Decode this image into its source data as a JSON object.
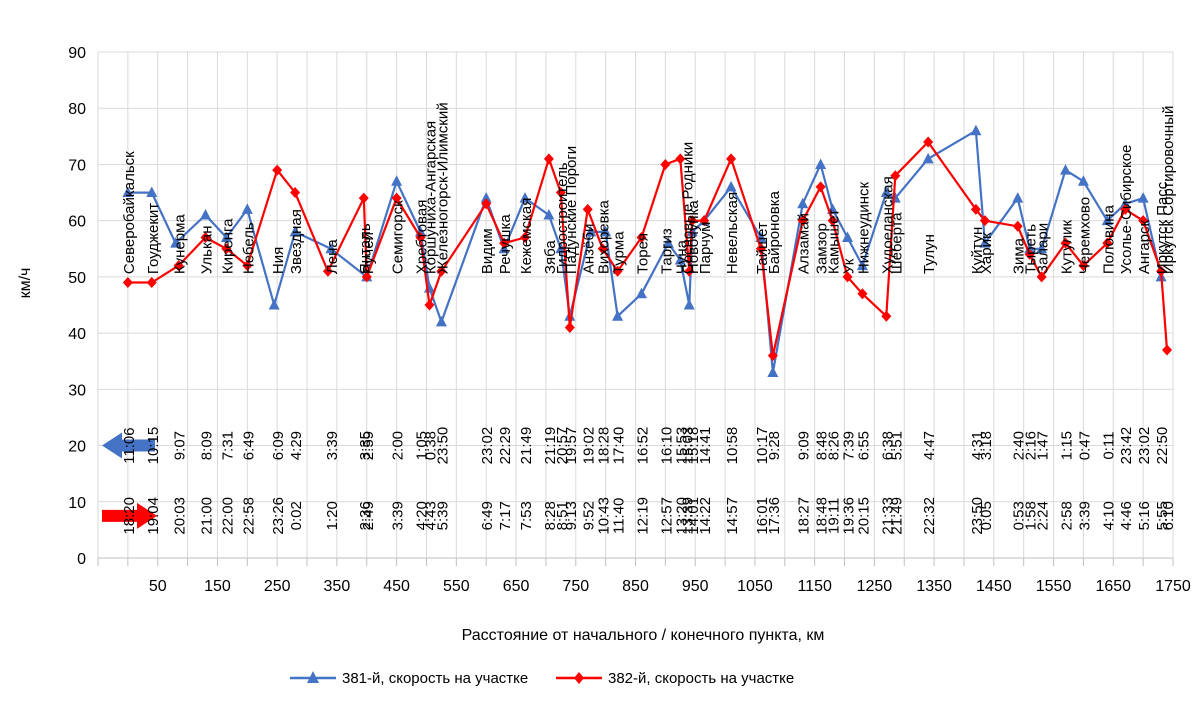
{
  "chart_data": {
    "type": "line",
    "title": "",
    "xlabel": "Расстояние от начального / конечного пункта, км",
    "ylabel": "км/ч",
    "xlim": [
      -50,
      1750
    ],
    "ylim": [
      0,
      90
    ],
    "x_ticks": [
      50,
      150,
      250,
      350,
      450,
      550,
      650,
      750,
      850,
      950,
      1050,
      1150,
      1250,
      1350,
      1450,
      1550,
      1650,
      1750
    ],
    "y_ticks": [
      0,
      10,
      20,
      30,
      40,
      50,
      60,
      70,
      80,
      90
    ],
    "colors": {
      "s381": "#4472C4",
      "s382": "#FF0000",
      "grid": "#D9D9D9"
    },
    "series": [
      {
        "name": "381-й, скорость на участке",
        "marker": "triangle",
        "points": [
          [
            0,
            65
          ],
          [
            40,
            65
          ],
          [
            80,
            56
          ],
          [
            130,
            61
          ],
          [
            165,
            57
          ],
          [
            200,
            62
          ],
          [
            245,
            45
          ],
          [
            280,
            58
          ],
          [
            340,
            55
          ],
          [
            400,
            50
          ],
          [
            450,
            67
          ],
          [
            490,
            58
          ],
          [
            505,
            48
          ],
          [
            525,
            42
          ],
          [
            600,
            64
          ],
          [
            630,
            55
          ],
          [
            665,
            64
          ],
          [
            705,
            61
          ],
          [
            725,
            55
          ],
          [
            740,
            43
          ],
          [
            775,
            58
          ],
          [
            800,
            58
          ],
          [
            820,
            43
          ],
          [
            860,
            47
          ],
          [
            905,
            56
          ],
          [
            925,
            53
          ],
          [
            940,
            45
          ],
          [
            945,
            58
          ],
          [
            965,
            60
          ],
          [
            1010,
            66
          ],
          [
            1060,
            57
          ],
          [
            1080,
            33
          ],
          [
            1130,
            63
          ],
          [
            1160,
            70
          ],
          [
            1180,
            62
          ],
          [
            1205,
            57
          ],
          [
            1230,
            52
          ],
          [
            1270,
            65
          ],
          [
            1285,
            64
          ],
          [
            1340,
            71
          ],
          [
            1420,
            76
          ],
          [
            1435,
            56
          ],
          [
            1490,
            64
          ],
          [
            1510,
            55
          ],
          [
            1530,
            55
          ],
          [
            1570,
            69
          ],
          [
            1600,
            67
          ],
          [
            1640,
            60
          ],
          [
            1670,
            63
          ],
          [
            1700,
            64
          ],
          [
            1730,
            50
          ]
        ]
      },
      {
        "name": "382-й, скорость на участке",
        "marker": "diamond",
        "points": [
          [
            0,
            49
          ],
          [
            40,
            49
          ],
          [
            85,
            52
          ],
          [
            130,
            57
          ],
          [
            165,
            55
          ],
          [
            200,
            52
          ],
          [
            250,
            69
          ],
          [
            280,
            65
          ],
          [
            335,
            51
          ],
          [
            395,
            64
          ],
          [
            400,
            50
          ],
          [
            450,
            64
          ],
          [
            490,
            57
          ],
          [
            505,
            45
          ],
          [
            525,
            51
          ],
          [
            600,
            63
          ],
          [
            630,
            56
          ],
          [
            665,
            57
          ],
          [
            705,
            71
          ],
          [
            725,
            65
          ],
          [
            740,
            41
          ],
          [
            770,
            62
          ],
          [
            795,
            55
          ],
          [
            820,
            51
          ],
          [
            860,
            57
          ],
          [
            900,
            70
          ],
          [
            925,
            71
          ],
          [
            940,
            51
          ],
          [
            945,
            60
          ],
          [
            965,
            60
          ],
          [
            1010,
            71
          ],
          [
            1060,
            55
          ],
          [
            1080,
            36
          ],
          [
            1130,
            60
          ],
          [
            1160,
            66
          ],
          [
            1180,
            60
          ],
          [
            1205,
            50
          ],
          [
            1230,
            47
          ],
          [
            1270,
            43
          ],
          [
            1285,
            68
          ],
          [
            1340,
            74
          ],
          [
            1420,
            62
          ],
          [
            1435,
            60
          ],
          [
            1490,
            59
          ],
          [
            1510,
            54
          ],
          [
            1530,
            50
          ],
          [
            1570,
            56
          ],
          [
            1600,
            52
          ],
          [
            1640,
            56
          ],
          [
            1670,
            62
          ],
          [
            1700,
            60
          ],
          [
            1730,
            51
          ],
          [
            1740,
            37
          ]
        ]
      }
    ],
    "stations": [
      {
        "name": "Северобайкальск",
        "x": 0,
        "t381": "11:06",
        "t382": "18:20"
      },
      {
        "name": "Гоуджекит",
        "x": 40,
        "t381": "10:15",
        "t382": "19:04"
      },
      {
        "name": "Кунерма",
        "x": 85,
        "t381": "9:07",
        "t382": "20:03"
      },
      {
        "name": "Улькан",
        "x": 130,
        "t381": "8:09",
        "t382": "21:00"
      },
      {
        "name": "Киренга",
        "x": 165,
        "t381": "7:31",
        "t382": "22:00"
      },
      {
        "name": "Небель",
        "x": 200,
        "t381": "6:49",
        "t382": "22:58"
      },
      {
        "name": "Ния",
        "x": 250,
        "t381": "6:09",
        "t382": "23:26"
      },
      {
        "name": "Звездная",
        "x": 280,
        "t381": "4:29",
        "t382": "0:02"
      },
      {
        "name": "Лена",
        "x": 340,
        "t381": "3:39",
        "t382": "1:20"
      },
      {
        "name": "Янталь",
        "x": 395,
        "t381": "3:35",
        "t382": "2:36"
      },
      {
        "name": "Ручей",
        "x": 400,
        "t381": "2:59",
        "t382": "2:49"
      },
      {
        "name": "Семигорск",
        "x": 450,
        "t381": "2:00",
        "t382": "3:39"
      },
      {
        "name": "Хребтовая",
        "x": 490,
        "t381": "1:05",
        "t382": "4:20"
      },
      {
        "name": "Коршуниха-Ангарская",
        "x": 505,
        "t381": "0:38",
        "t382": "4:43"
      },
      {
        "name": "Железногорск-Илимский",
        "x": 525,
        "t381": "23:50",
        "t382": "5:39"
      },
      {
        "name": "Видим",
        "x": 600,
        "t381": "23:02",
        "t382": "6:49"
      },
      {
        "name": "Речушка",
        "x": 630,
        "t381": "22:29",
        "t382": "7:17"
      },
      {
        "name": "Кежемская",
        "x": 665,
        "t381": "21:49",
        "t382": "7:53"
      },
      {
        "name": "Зяба",
        "x": 705,
        "t381": "21:19",
        "t382": "8:28"
      },
      {
        "name": "Гидростроитель",
        "x": 725,
        "t381": "20:57",
        "t382": "8:51"
      },
      {
        "name": "Падунские Пороги",
        "x": 740,
        "t381": "19:57",
        "t382": "9:13"
      },
      {
        "name": "Анзёби",
        "x": 770,
        "t381": "19:02",
        "t382": "9:52"
      },
      {
        "name": "Вихоревка",
        "x": 795,
        "t381": "18:28",
        "t382": "10:43"
      },
      {
        "name": "Турма",
        "x": 820,
        "t381": "17:40",
        "t382": "11:40"
      },
      {
        "name": "Торея",
        "x": 860,
        "t381": "16:52",
        "t382": "12:19"
      },
      {
        "name": "Таргиз",
        "x": 900,
        "t381": "16:10",
        "t382": "12:57"
      },
      {
        "name": "Чуна",
        "x": 925,
        "t381": "15:53",
        "t382": "13:20"
      },
      {
        "name": "Сосновые Родники",
        "x": 935,
        "t381": "15:03",
        "t382": "13:39"
      },
      {
        "name": "Новочунка",
        "x": 945,
        "t381": "15:18",
        "t382": "14:01"
      },
      {
        "name": "Парчум",
        "x": 965,
        "t381": "14:41",
        "t382": "14:22"
      },
      {
        "name": "Невельская",
        "x": 1010,
        "t381": "10:58",
        "t382": "14:57"
      },
      {
        "name": "Тайшет",
        "x": 1060,
        "t381": "10:17",
        "t382": "16:01"
      },
      {
        "name": "Байроновка",
        "x": 1080,
        "t381": "9:28",
        "t382": "17:36"
      },
      {
        "name": "Алзамай",
        "x": 1130,
        "t381": "9:09",
        "t382": "18:27"
      },
      {
        "name": "Замзор",
        "x": 1160,
        "t381": "8:48",
        "t382": "18:48"
      },
      {
        "name": "Камышет",
        "x": 1180,
        "t381": "8:26",
        "t382": "19:11"
      },
      {
        "name": "Ук",
        "x": 1205,
        "t381": "7:39",
        "t382": "19:36"
      },
      {
        "name": "Нижнеудинск",
        "x": 1230,
        "t381": "6:55",
        "t382": "20:15"
      },
      {
        "name": "Худоеланская",
        "x": 1270,
        "t381": "6:38",
        "t382": "21:33"
      },
      {
        "name": "Шеберта",
        "x": 1285,
        "t381": "5:51",
        "t382": "21:49"
      },
      {
        "name": "Тулун",
        "x": 1340,
        "t381": "4:47",
        "t382": "22:32"
      },
      {
        "name": "Куйтун",
        "x": 1420,
        "t381": "4:31",
        "t382": "23:50"
      },
      {
        "name": "Харик",
        "x": 1435,
        "t381": "3:18",
        "t382": "0:05"
      },
      {
        "name": "Зима",
        "x": 1490,
        "t381": "2:40",
        "t382": "0:53"
      },
      {
        "name": "Тыреть",
        "x": 1510,
        "t381": "2:16",
        "t382": "1:58"
      },
      {
        "name": "Залари",
        "x": 1530,
        "t381": "1:47",
        "t382": "2:24"
      },
      {
        "name": "Кутулик",
        "x": 1570,
        "t381": "1:15",
        "t382": "2:58"
      },
      {
        "name": "Черемхово",
        "x": 1600,
        "t381": "0:47",
        "t382": "3:39"
      },
      {
        "name": "Половина",
        "x": 1640,
        "t381": "0:11",
        "t382": "4:10"
      },
      {
        "name": "Усолье-Сибирское",
        "x": 1670,
        "t381": "23:42",
        "t382": "4:46"
      },
      {
        "name": "Ангарск",
        "x": 1700,
        "t381": "23:02",
        "t382": "5:16"
      },
      {
        "name": "Иркутск Пасс.",
        "x": 1730,
        "t381": "22:50",
        "t382": "5:55"
      },
      {
        "name": "Иркутск Сортировочный",
        "x": 1740,
        "t381": "",
        "t382": "6:10"
      }
    ]
  }
}
